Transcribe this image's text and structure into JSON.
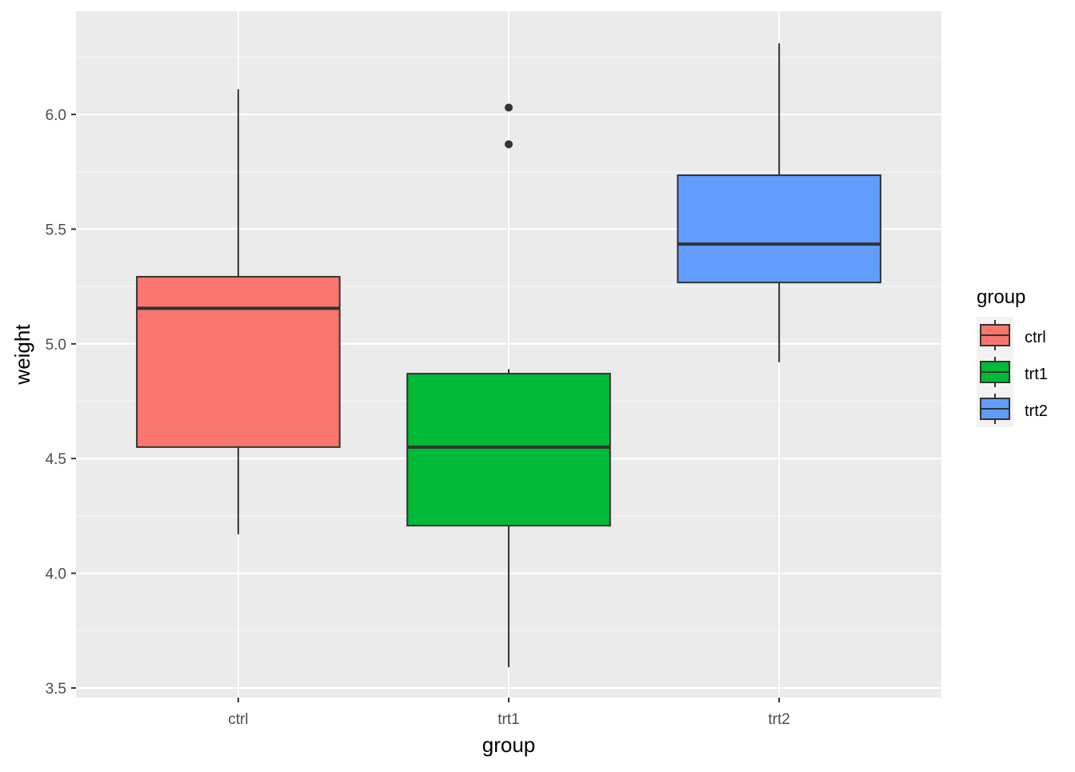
{
  "chart_data": {
    "type": "box",
    "title": "",
    "xlabel": "group",
    "ylabel": "weight",
    "ylim": [
      3.458,
      6.45
    ],
    "yticks": [
      3.5,
      4.0,
      4.5,
      5.0,
      5.5,
      6.0
    ],
    "ytick_labels": [
      "3.5",
      "4.0",
      "4.5",
      "5.0",
      "5.5",
      "6.0"
    ],
    "categories": [
      "ctrl",
      "trt1",
      "trt2"
    ],
    "grid": true,
    "legend": {
      "title": "group",
      "placement": "right",
      "entries": [
        "ctrl",
        "trt1",
        "trt2"
      ]
    },
    "colors": {
      "ctrl": "#F8766D",
      "trt1": "#00BA38",
      "trt2": "#619CFF",
      "panel": "#EBEBEB",
      "grid": "#FFFFFF",
      "outline": "#333333"
    },
    "boxes": [
      {
        "name": "ctrl",
        "lower_whisker": 4.17,
        "q1": 4.55,
        "median": 5.155,
        "q3": 5.2925,
        "upper_whisker": 6.11,
        "outliers": []
      },
      {
        "name": "trt1",
        "lower_whisker": 3.59,
        "q1": 4.2075,
        "median": 4.55,
        "q3": 4.87,
        "upper_whisker": 4.89,
        "outliers": [
          5.87,
          6.03
        ]
      },
      {
        "name": "trt2",
        "lower_whisker": 4.92,
        "q1": 5.2675,
        "median": 5.435,
        "q3": 5.735,
        "upper_whisker": 6.31,
        "outliers": []
      }
    ]
  }
}
